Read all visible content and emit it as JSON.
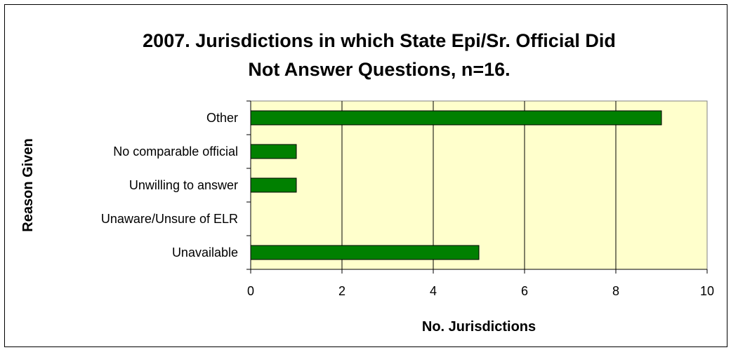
{
  "chart_data": {
    "type": "bar",
    "orientation": "horizontal",
    "title_line1": "2007. Jurisdictions in which State Epi/Sr. Official Did",
    "title_line2": "Not Answer Questions, n=16.",
    "xlabel": "No. Jurisdictions",
    "ylabel": "Reason Given",
    "categories": [
      "Other",
      "No comparable official",
      "Unwilling to answer",
      "Unaware/Unsure of ELR",
      "Unavailable"
    ],
    "values": [
      9,
      1,
      1,
      0,
      5
    ],
    "xlim": [
      0,
      10
    ],
    "xticks": [
      "0",
      "2",
      "4",
      "6",
      "8",
      "10"
    ],
    "grid": true,
    "legend": "none",
    "colors": {
      "bar": "#008000",
      "bar_stroke": "#000000",
      "plot_background": "#FFFFCC",
      "grid": "#000000"
    }
  }
}
